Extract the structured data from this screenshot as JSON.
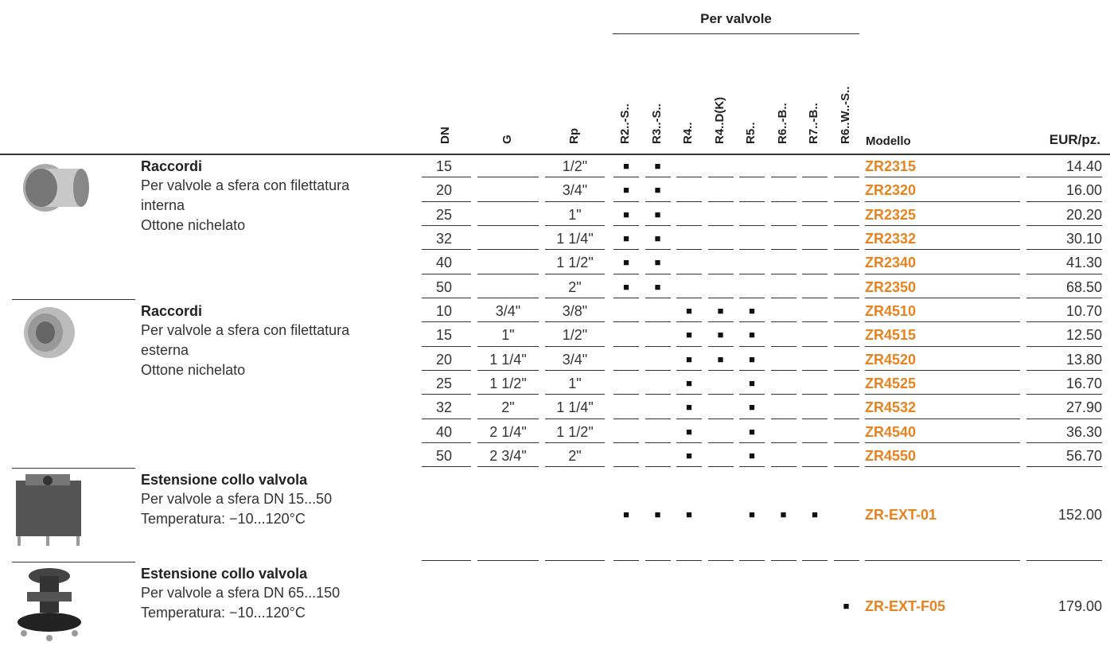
{
  "header": {
    "group_title": "Per valvole",
    "columns": [
      "DN",
      "G",
      "Rp"
    ],
    "valve_columns": [
      "R2..-S..",
      "R3..-S..",
      "R4..",
      "R4..D(K)",
      "R5..",
      "R6..-B..",
      "R7..-B..",
      "R6..W..-S.."
    ],
    "model": "Modello",
    "price": "EUR/pz."
  },
  "groups": [
    {
      "title": "Raccordi",
      "description": "Per valvole a sfera con filettatura interna",
      "material": "Ottone nichelato",
      "rows": [
        {
          "dn": "15",
          "g": null,
          "rp": "1/2\"",
          "valves": [
            "■",
            "■",
            null,
            null,
            null,
            null,
            null,
            null
          ],
          "model": "ZR2315",
          "price": "14.40"
        },
        {
          "dn": "20",
          "g": null,
          "rp": "3/4\"",
          "valves": [
            "■",
            "■",
            null,
            null,
            null,
            null,
            null,
            null
          ],
          "model": "ZR2320",
          "price": "16.00"
        },
        {
          "dn": "25",
          "g": null,
          "rp": "1\"",
          "valves": [
            "■",
            "■",
            null,
            null,
            null,
            null,
            null,
            null
          ],
          "model": "ZR2325",
          "price": "20.20"
        },
        {
          "dn": "32",
          "g": null,
          "rp": "1 1/4\"",
          "valves": [
            "■",
            "■",
            null,
            null,
            null,
            null,
            null,
            null
          ],
          "model": "ZR2332",
          "price": "30.10"
        },
        {
          "dn": "40",
          "g": null,
          "rp": "1 1/2\"",
          "valves": [
            "■",
            "■",
            null,
            null,
            null,
            null,
            null,
            null
          ],
          "model": "ZR2340",
          "price": "41.30"
        },
        {
          "dn": "50",
          "g": null,
          "rp": "2\"",
          "valves": [
            "■",
            "■",
            null,
            null,
            null,
            null,
            null,
            null
          ],
          "model": "ZR2350",
          "price": "68.50"
        }
      ]
    },
    {
      "title": "Raccordi",
      "description": "Per valvole a sfera con filettatura esterna",
      "material": "Ottone nichelato",
      "rows": [
        {
          "dn": "10",
          "g": "3/4\"",
          "rp": "3/8\"",
          "valves": [
            null,
            null,
            "■",
            "■",
            "■",
            null,
            null,
            null
          ],
          "model": "ZR4510",
          "price": "10.70"
        },
        {
          "dn": "15",
          "g": "1\"",
          "rp": "1/2\"",
          "valves": [
            null,
            null,
            "■",
            "■",
            "■",
            null,
            null,
            null
          ],
          "model": "ZR4515",
          "price": "12.50"
        },
        {
          "dn": "20",
          "g": "1 1/4\"",
          "rp": "3/4\"",
          "valves": [
            null,
            null,
            "■",
            "■",
            "■",
            null,
            null,
            null
          ],
          "model": "ZR4520",
          "price": "13.80"
        },
        {
          "dn": "25",
          "g": "1 1/2\"",
          "rp": "1\"",
          "valves": [
            null,
            null,
            "■",
            null,
            "■",
            null,
            null,
            null
          ],
          "model": "ZR4525",
          "price": "16.70"
        },
        {
          "dn": "32",
          "g": "2\"",
          "rp": "1 1/4\"",
          "valves": [
            null,
            null,
            "■",
            null,
            "■",
            null,
            null,
            null
          ],
          "model": "ZR4532",
          "price": "27.90"
        },
        {
          "dn": "40",
          "g": "2 1/4\"",
          "rp": "1 1/2\"",
          "valves": [
            null,
            null,
            "■",
            null,
            "■",
            null,
            null,
            null
          ],
          "model": "ZR4540",
          "price": "36.30"
        },
        {
          "dn": "50",
          "g": "2 3/4\"",
          "rp": "2\"",
          "valves": [
            null,
            null,
            "■",
            null,
            "■",
            null,
            null,
            null
          ],
          "model": "ZR4550",
          "price": "56.70"
        }
      ]
    },
    {
      "title": "Estensione collo valvola",
      "description": "Per valvole a sfera DN 15...50",
      "material": "Temperatura: −10...120°C",
      "rows": [
        {
          "dn": null,
          "g": null,
          "rp": null,
          "valves": [
            "■",
            "■",
            "■",
            null,
            "■",
            "■",
            "■",
            null
          ],
          "model": "ZR-EXT-01",
          "price": "152.00"
        }
      ]
    },
    {
      "title": "Estensione collo valvola",
      "description": "Per valvole a sfera DN 65...150",
      "material": "Temperatura: −10...120°C",
      "rows": [
        {
          "dn": null,
          "g": null,
          "rp": null,
          "valves": [
            null,
            null,
            null,
            null,
            null,
            null,
            null,
            "■"
          ],
          "model": "ZR-EXT-F05",
          "price": "179.00"
        }
      ]
    }
  ]
}
